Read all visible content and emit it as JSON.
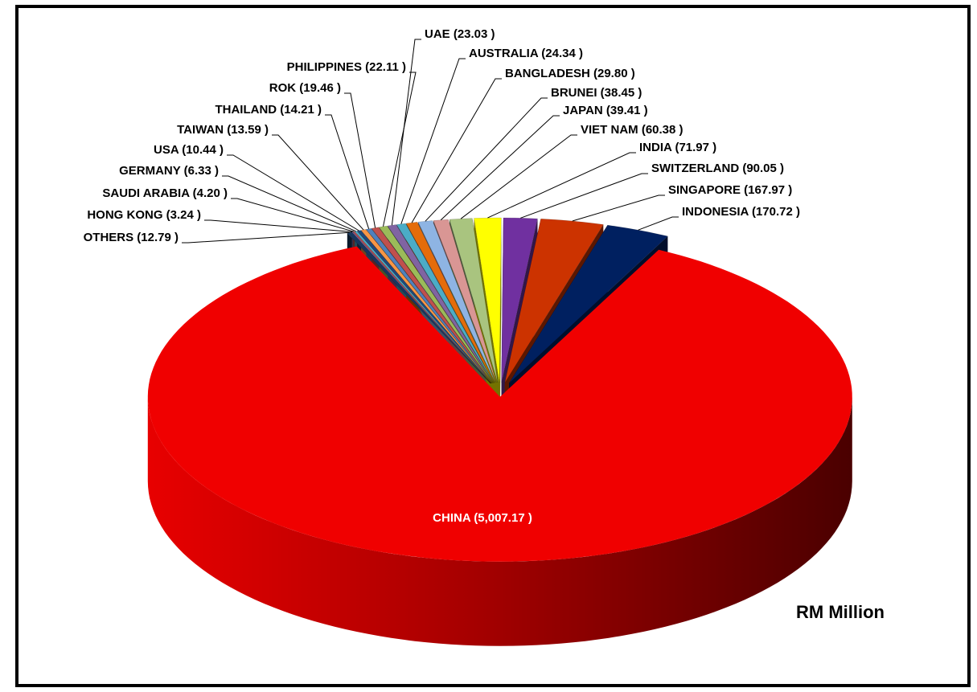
{
  "chart_data": {
    "type": "pie3d",
    "categories": [
      "OTHERS (12.79 )",
      "HONG KONG (3.24 )",
      "SAUDI ARABIA (4.20 )",
      "GERMANY (6.33 )",
      "USA (10.44 )",
      "TAIWAN (13.59 )",
      "THAILAND (14.21 )",
      "ROK (19.46 )",
      "PHILIPPINES (22.11 )",
      "UAE (23.03 )",
      "AUSTRALIA (24.34 )",
      "BANGLADESH (29.80 )",
      "BRUNEI (38.45 )",
      "JAPAN (39.41 )",
      "VIET NAM (60.38 )",
      "INDIA (71.97 )",
      "SWITZERLAND (90.05 )",
      "SINGAPORE (167.97 )",
      "INDONESIA (170.72 )",
      "CHINA (5,007.17 )"
    ],
    "values": [
      12.79,
      3.24,
      4.2,
      6.33,
      10.44,
      13.59,
      14.21,
      19.46,
      22.11,
      23.03,
      24.34,
      29.8,
      38.45,
      39.41,
      60.38,
      71.97,
      90.05,
      167.97,
      170.72,
      5007.17
    ],
    "colors": [
      "#17375e",
      "#8064a2",
      "#c0504d",
      "#4bacc6",
      "#1f497d",
      "#f79646",
      "#4f81bd",
      "#c0504d",
      "#9bbb59",
      "#8064a2",
      "#4bacc6",
      "#e46c0a",
      "#8eb4e3",
      "#d99694",
      "#a9c47f",
      "#ffff00",
      "#7030a0",
      "#cc3300",
      "#002060",
      "#f00000"
    ],
    "unit_label": "RM Million"
  }
}
